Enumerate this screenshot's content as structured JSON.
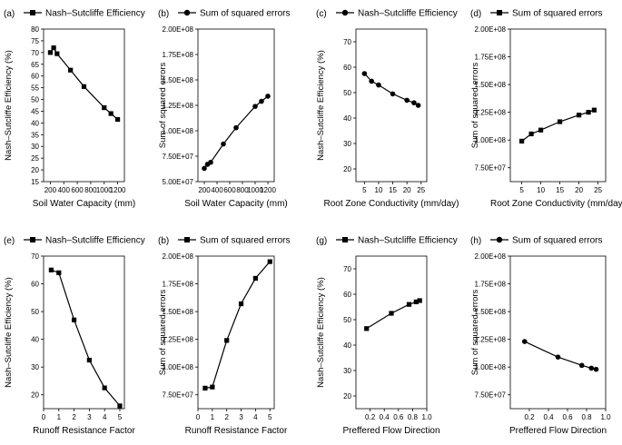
{
  "chart_data": [
    {
      "type": "line",
      "panel_label": "(a)",
      "legend": "Nash–Sutcliffe Efficiency",
      "marker": "square",
      "xlabel": "Soil Water Capacity (mm)",
      "ylabel": "Nash–Sutcliffe Efficiency (%)",
      "xlim": [
        100,
        1300
      ],
      "ylim": [
        15,
        80
      ],
      "xticks": [
        200,
        400,
        600,
        800,
        1000,
        1200
      ],
      "xtick_labels": [
        "200",
        "400",
        "600",
        "800",
        "1000",
        "1200"
      ],
      "yticks": [
        15,
        20,
        25,
        30,
        35,
        40,
        45,
        50,
        55,
        60,
        65,
        70,
        75,
        80
      ],
      "ytick_labels": [
        "15",
        "20",
        "25",
        "30",
        "35",
        "40",
        "45",
        "50",
        "55",
        "60",
        "65",
        "70",
        "75",
        "80"
      ],
      "x": [
        200,
        250,
        300,
        500,
        700,
        1000,
        1100,
        1200
      ],
      "y": [
        70,
        72,
        69.5,
        62.5,
        55.5,
        46.5,
        44,
        41.5
      ]
    },
    {
      "type": "line",
      "panel_label": "(b)",
      "legend": "Sum of squared errors",
      "marker": "circle",
      "xlabel": "Soil Water Capacity (mm)",
      "ylabel": "Sum of squared errors",
      "xlim": [
        100,
        1300
      ],
      "ylim": [
        50000000,
        200000000
      ],
      "xticks": [
        200,
        400,
        600,
        800,
        1000,
        1200
      ],
      "xtick_labels": [
        "200",
        "400",
        "600",
        "800",
        "1000",
        "1200"
      ],
      "yticks": [
        50000000,
        75000000,
        100000000,
        125000000,
        150000000,
        175000000,
        200000000
      ],
      "ytick_labels": [
        "5.00E+07",
        "7.50E+07",
        "1.00E+08",
        "1.25E+08",
        "1.50E+08",
        "1.75E+08",
        "2.00E+08"
      ],
      "x": [
        200,
        250,
        300,
        500,
        700,
        1000,
        1100,
        1200
      ],
      "y": [
        63000000,
        67000000,
        69000000,
        87000000,
        103000000,
        124000000,
        129000000,
        134000000
      ]
    },
    {
      "type": "line",
      "panel_label": "(c)",
      "legend": "Nash–Sutcliffe Efficiency",
      "marker": "circle",
      "xlabel": "Root Zone Conductivity (mm/day)",
      "ylabel": "Nash–Sutcliffe Efficiency (%)",
      "xlim": [
        2,
        27
      ],
      "ylim": [
        15,
        75
      ],
      "xticks": [
        5,
        10,
        15,
        20,
        25
      ],
      "xtick_labels": [
        "5",
        "10",
        "15",
        "20",
        "25"
      ],
      "yticks": [
        20,
        30,
        40,
        50,
        60,
        70
      ],
      "ytick_labels": [
        "20",
        "30",
        "40",
        "50",
        "60",
        "70"
      ],
      "x": [
        5,
        7.5,
        10,
        15,
        20,
        22.5,
        24
      ],
      "y": [
        57.5,
        54.5,
        53,
        49.5,
        47,
        46,
        45
      ]
    },
    {
      "type": "line",
      "panel_label": "(d)",
      "legend": "Sum of squared errors",
      "marker": "square",
      "xlabel": "Root Zone Conductivity (mm/day)",
      "ylabel": "Sum of squared errors",
      "xlim": [
        2,
        27
      ],
      "ylim": [
        62500000,
        200000000
      ],
      "xticks": [
        5,
        10,
        15,
        20,
        25
      ],
      "xtick_labels": [
        "5",
        "10",
        "15",
        "20",
        "25"
      ],
      "yticks": [
        75000000,
        100000000,
        125000000,
        150000000,
        175000000,
        200000000
      ],
      "ytick_labels": [
        "7.50E+07",
        "1.00E+08",
        "1.25E+08",
        "1.50E+08",
        "1.75E+08",
        "2.00E+08"
      ],
      "x": [
        5,
        7.5,
        10,
        15,
        20,
        22.5,
        24
      ],
      "y": [
        99000000,
        105500000,
        109000000,
        116500000,
        122500000,
        125000000,
        127000000
      ]
    },
    {
      "type": "line",
      "panel_label": "(e)",
      "legend": "Nash–Sutcliffe Efficiency",
      "marker": "square",
      "xlabel": "Runoff Resistance Factor",
      "ylabel": "Nash–Sutcliffe Efficiency (%)",
      "xlim": [
        0,
        5.3
      ],
      "ylim": [
        15,
        70
      ],
      "xticks": [
        0,
        1,
        2,
        3,
        4,
        5
      ],
      "xtick_labels": [
        "0",
        "1",
        "2",
        "3",
        "4",
        "5"
      ],
      "yticks": [
        20,
        30,
        40,
        50,
        60,
        70
      ],
      "ytick_labels": [
        "20",
        "30",
        "40",
        "50",
        "60",
        "70"
      ],
      "x": [
        0.5,
        1,
        2,
        3,
        4,
        5
      ],
      "y": [
        65,
        64,
        47,
        32.5,
        22.5,
        16
      ]
    },
    {
      "type": "line",
      "panel_label": "(b)",
      "legend": "Sum of squared errors",
      "marker": "square",
      "xlabel": "Runoff Resistance Factor",
      "ylabel": "Sum of squared errors",
      "xlim": [
        0,
        5.3
      ],
      "ylim": [
        62500000,
        200000000
      ],
      "xticks": [
        0,
        1,
        2,
        3,
        4,
        5
      ],
      "xtick_labels": [
        "0",
        "1",
        "2",
        "3",
        "4",
        "5"
      ],
      "yticks": [
        75000000,
        100000000,
        125000000,
        150000000,
        175000000,
        200000000
      ],
      "ytick_labels": [
        "7.50E+07",
        "1.00E+08",
        "1.25E+08",
        "1.50E+08",
        "1.75E+08",
        "2.00E+08"
      ],
      "x": [
        0.5,
        1,
        2,
        3,
        4,
        5
      ],
      "y": [
        81000000,
        82000000,
        124000000,
        157000000,
        180000000,
        195000000
      ]
    },
    {
      "type": "line",
      "panel_label": "(g)",
      "legend": "Nash–Sutcliffe Efficiency",
      "marker": "square",
      "xlabel": "Preffered Flow Direction",
      "ylabel": "Nash–Sutcliffe Efficiency (%)",
      "xlim": [
        0,
        1.0
      ],
      "ylim": [
        15,
        75
      ],
      "xticks": [
        0.2,
        0.4,
        0.6,
        0.8,
        1.0
      ],
      "xtick_labels": [
        "0.2",
        "0.4",
        "0.6",
        "0.8",
        "1.0"
      ],
      "yticks": [
        20,
        30,
        40,
        50,
        60,
        70
      ],
      "ytick_labels": [
        "20",
        "30",
        "40",
        "50",
        "60",
        "70"
      ],
      "x": [
        0.15,
        0.5,
        0.75,
        0.85,
        0.9
      ],
      "y": [
        46.5,
        52.5,
        56,
        57,
        57.5
      ]
    },
    {
      "type": "line",
      "panel_label": "(h)",
      "legend": "Sum of squared errors",
      "marker": "circle",
      "xlabel": "Preffered Flow Direction",
      "ylabel": "Sum of squared errors",
      "xlim": [
        0,
        1.0
      ],
      "ylim": [
        62500000,
        200000000
      ],
      "xticks": [
        0.2,
        0.4,
        0.6,
        0.8,
        1.0
      ],
      "xtick_labels": [
        "0.2",
        "0.4",
        "0.6",
        "0.8",
        "1.0"
      ],
      "yticks": [
        75000000,
        100000000,
        125000000,
        150000000,
        175000000,
        200000000
      ],
      "ytick_labels": [
        "7.50E+07",
        "1.00E+08",
        "1.25E+08",
        "1.50E+08",
        "1.75E+08",
        "2.00E+08"
      ],
      "x": [
        0.15,
        0.5,
        0.75,
        0.85,
        0.9
      ],
      "y": [
        123000000,
        109000000,
        101500000,
        99000000,
        98000000
      ]
    }
  ]
}
